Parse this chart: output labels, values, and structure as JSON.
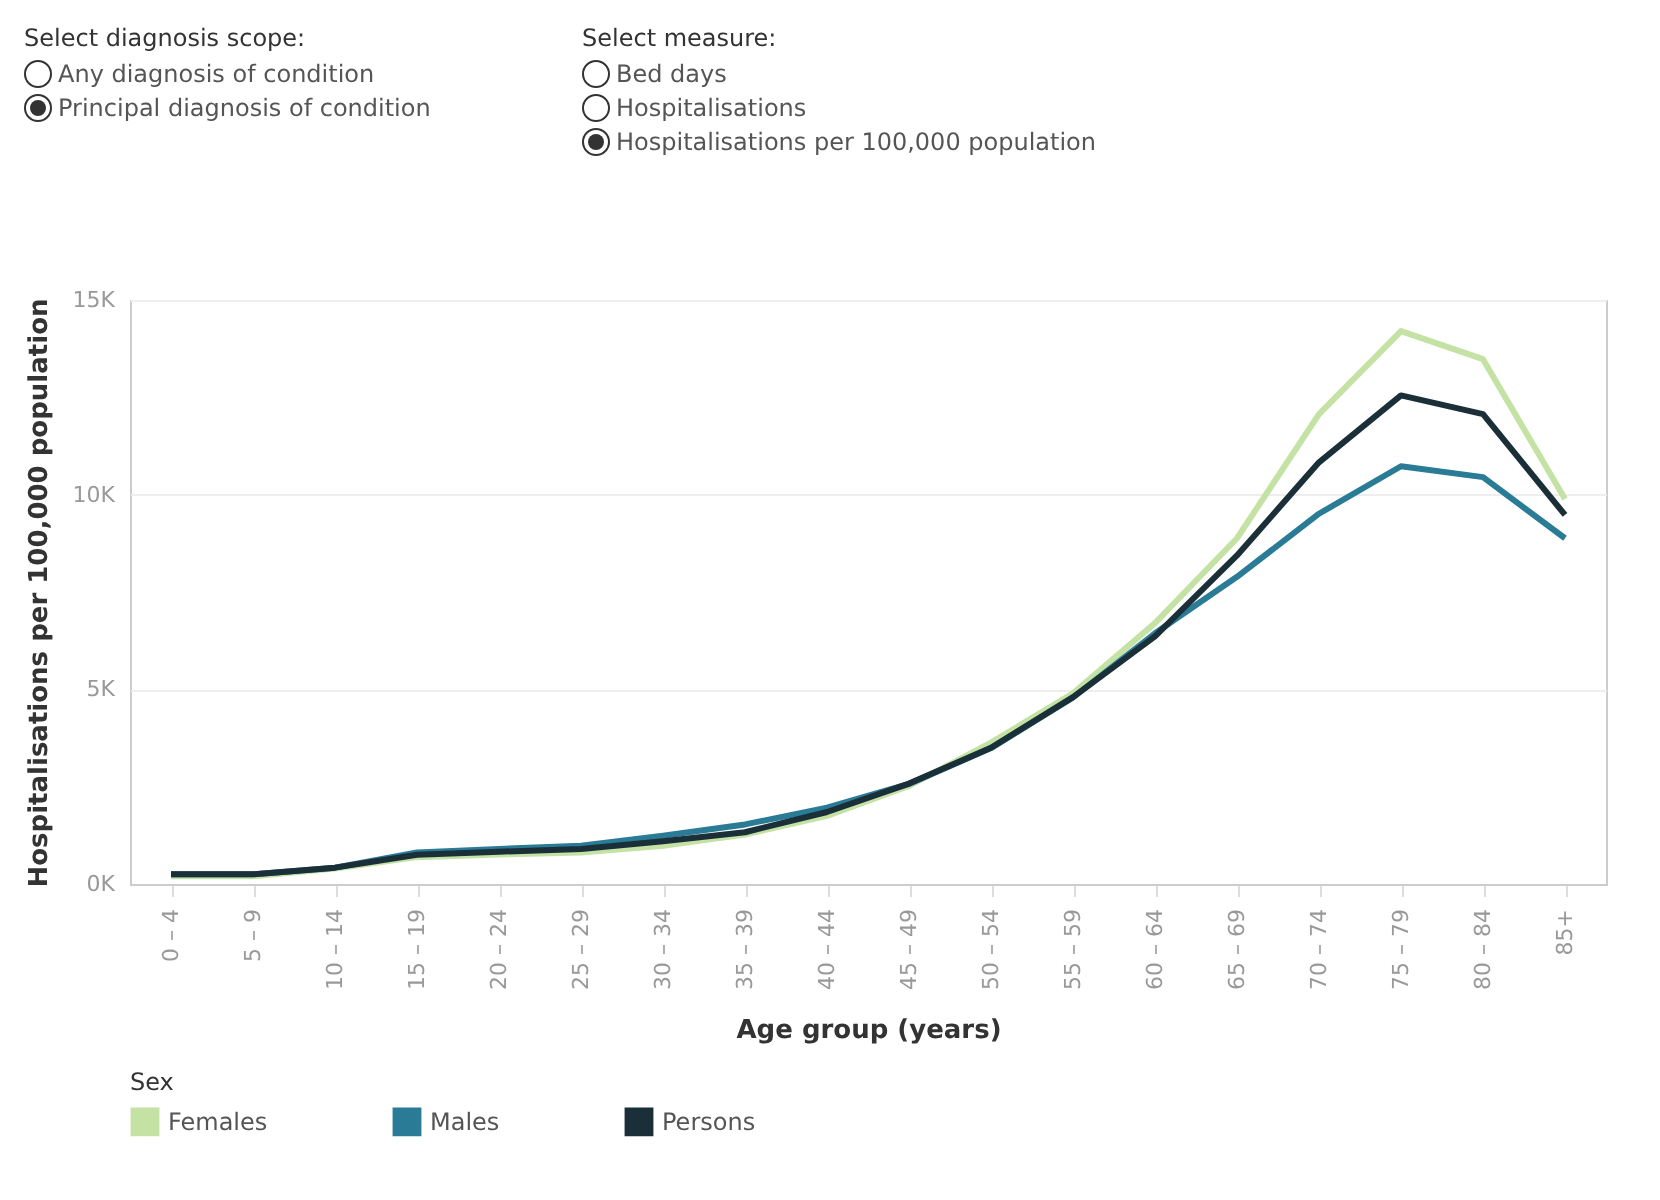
{
  "chart_data": {
    "type": "line",
    "xlabel": "Age group (years)",
    "ylabel": "Hospitalisations per 100,000 population",
    "legend_title": "Sex",
    "categories": [
      "0 – 4",
      "5 – 9",
      "10 – 14",
      "15 – 19",
      "20 – 24",
      "25 – 29",
      "30 – 34",
      "35 – 39",
      "40 – 44",
      "45 – 49",
      "50 – 54",
      "55 – 59",
      "60 – 64",
      "65 – 69",
      "70 – 74",
      "75 – 79",
      "80 – 84",
      "85+"
    ],
    "series": [
      {
        "name": "Females",
        "color": "#c3e2a4",
        "values": [
          200,
          200,
          400,
          690,
          760,
          810,
          980,
          1270,
          1750,
          2520,
          3630,
          4900,
          6700,
          8880,
          12070,
          14200,
          13480,
          9890
        ]
      },
      {
        "name": "Males",
        "color": "#2a7b96",
        "values": [
          250,
          250,
          420,
          810,
          900,
          980,
          1240,
          1530,
          1960,
          2570,
          3490,
          4790,
          6440,
          7890,
          9510,
          10730,
          10450,
          8880
        ]
      },
      {
        "name": "Persons",
        "color": "#1a2f38",
        "values": [
          250,
          250,
          420,
          750,
          830,
          900,
          1100,
          1330,
          1850,
          2580,
          3500,
          4800,
          6360,
          8440,
          10830,
          12550,
          12070,
          9480
        ]
      }
    ],
    "ylim": [
      0,
      15000
    ],
    "yticks": [
      {
        "value": 0,
        "label": "0K"
      },
      {
        "value": 5000,
        "label": "5K"
      },
      {
        "value": 10000,
        "label": "10K"
      },
      {
        "value": 15000,
        "label": "15K"
      }
    ],
    "grid": "y",
    "legend": "bottom",
    "marker": "none",
    "line_style": "solid",
    "annotations": [
      "Select diagnosis scope:",
      "Any diagnosis of condition",
      "Principal diagnosis of condition",
      "Select measure:",
      "Bed days",
      "Hospitalisations",
      "Hospitalisations per 100,000 population"
    ]
  }
}
